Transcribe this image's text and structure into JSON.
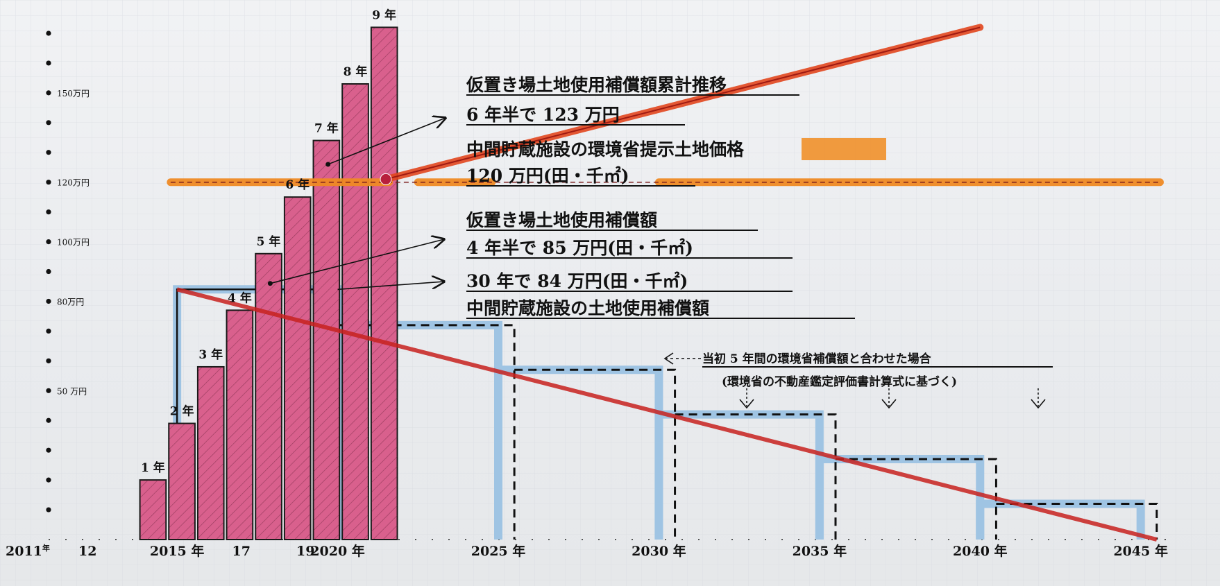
{
  "chart_data": {
    "type": "bar",
    "x_axis": {
      "range": [
        2011,
        2046
      ],
      "ticks": [
        {
          "x": 2011,
          "label": "2011",
          "suffix": "年"
        },
        {
          "x": 2012,
          "label": "12",
          "suffix": ""
        },
        {
          "x": 2015,
          "label": "2015 年",
          "suffix": ""
        },
        {
          "x": 2017,
          "label": "17",
          "suffix": ""
        },
        {
          "x": 2019,
          "label": "19",
          "suffix": ""
        },
        {
          "x": 2020,
          "label": "2020 年",
          "suffix": ""
        },
        {
          "x": 2025,
          "label": "2025 年",
          "suffix": ""
        },
        {
          "x": 2030,
          "label": "2030 年",
          "suffix": ""
        },
        {
          "x": 2035,
          "label": "2035 年",
          "suffix": ""
        },
        {
          "x": 2040,
          "label": "2040 年",
          "suffix": ""
        },
        {
          "x": 2045,
          "label": "2045 年",
          "suffix": ""
        }
      ]
    },
    "y_axis": {
      "range": [
        0,
        170
      ],
      "dot_step": 10,
      "labels": [
        {
          "value": 150,
          "label": "150万円"
        },
        {
          "value": 120,
          "label": "120万円"
        },
        {
          "value": 100,
          "label": "100万円"
        },
        {
          "value": 80,
          "label": "80万円"
        },
        {
          "value": 50,
          "label": "50 万円"
        }
      ]
    },
    "cumulative_bars": [
      {
        "label": "1 年",
        "x0": 2013.8,
        "x1": 2014.7,
        "value": 20
      },
      {
        "label": "2 年",
        "x0": 2014.7,
        "x1": 2015.6,
        "value": 39
      },
      {
        "label": "3 年",
        "x0": 2015.6,
        "x1": 2016.5,
        "value": 58
      },
      {
        "label": "4 年",
        "x0": 2016.5,
        "x1": 2017.4,
        "value": 77
      },
      {
        "label": "5 年",
        "x0": 2017.4,
        "x1": 2018.3,
        "value": 96
      },
      {
        "label": "6 年",
        "x0": 2018.3,
        "x1": 2019.2,
        "value": 115
      },
      {
        "label": "7 年",
        "x0": 2019.2,
        "x1": 2020.1,
        "value": 134
      },
      {
        "label": "8 年",
        "x0": 2020.1,
        "x1": 2021.0,
        "value": 153
      },
      {
        "label": "9 年",
        "x0": 2021.0,
        "x1": 2021.9,
        "value": 172
      }
    ],
    "interim_storage_steps": [
      {
        "x0": 2015.0,
        "x1": 2020.0,
        "value": 84
      },
      {
        "x0": 2020.0,
        "x1": 2025.0,
        "value": 72
      },
      {
        "x0": 2025.0,
        "x1": 2030.0,
        "value": 57
      },
      {
        "x0": 2030.0,
        "x1": 2035.0,
        "value": 42
      },
      {
        "x0": 2035.0,
        "x1": 2040.0,
        "value": 27
      },
      {
        "x0": 2040.0,
        "x1": 2045.0,
        "value": 12
      }
    ],
    "dashed_steps": [
      {
        "x0": 2020.0,
        "x1": 2025.5,
        "value": 72
      },
      {
        "x0": 2025.5,
        "x1": 2030.5,
        "value": 57
      },
      {
        "x0": 2030.5,
        "x1": 2035.5,
        "value": 42
      },
      {
        "x0": 2035.5,
        "x1": 2040.5,
        "value": 27
      },
      {
        "x0": 2040.5,
        "x1": 2045.5,
        "value": 12
      }
    ],
    "land_price_line": {
      "value": 120
    },
    "cumulative_trend_line": [
      {
        "x": 2021.5,
        "y": 121
      },
      {
        "x": 2040.0,
        "y": 172
      }
    ],
    "decline_line": [
      {
        "x": 2015.0,
        "y": 84
      },
      {
        "x": 2045.5,
        "y": 0
      }
    ],
    "colors": {
      "bar_fill": "#d9608d",
      "bar_edge": "#1a1a1a",
      "interim_fill": "#9fc4e3",
      "land_price": "#f08a24",
      "trend": "#e2471f",
      "decline": "#c8221f"
    },
    "annotations": {
      "a1": "仮置き場土地使用補償額累計推移",
      "a2": "6 年半で 123 万円",
      "a3": "中間貯蔵施設の環境省提示土地価格",
      "a4": "120 万円(田・千㎡)",
      "a5": "仮置き場土地使用補償額",
      "a6": "4 年半で 85 万円(田・千㎡)",
      "a7": "30 年で 84 万円(田・千㎡)",
      "a8": "中間貯蔵施設の土地使用補償額",
      "a9": "当初 5 年間の環境省補償額と合わせた場合",
      "a10": "(環境省の不動産鑑定評価書計算式に基づく)"
    }
  }
}
